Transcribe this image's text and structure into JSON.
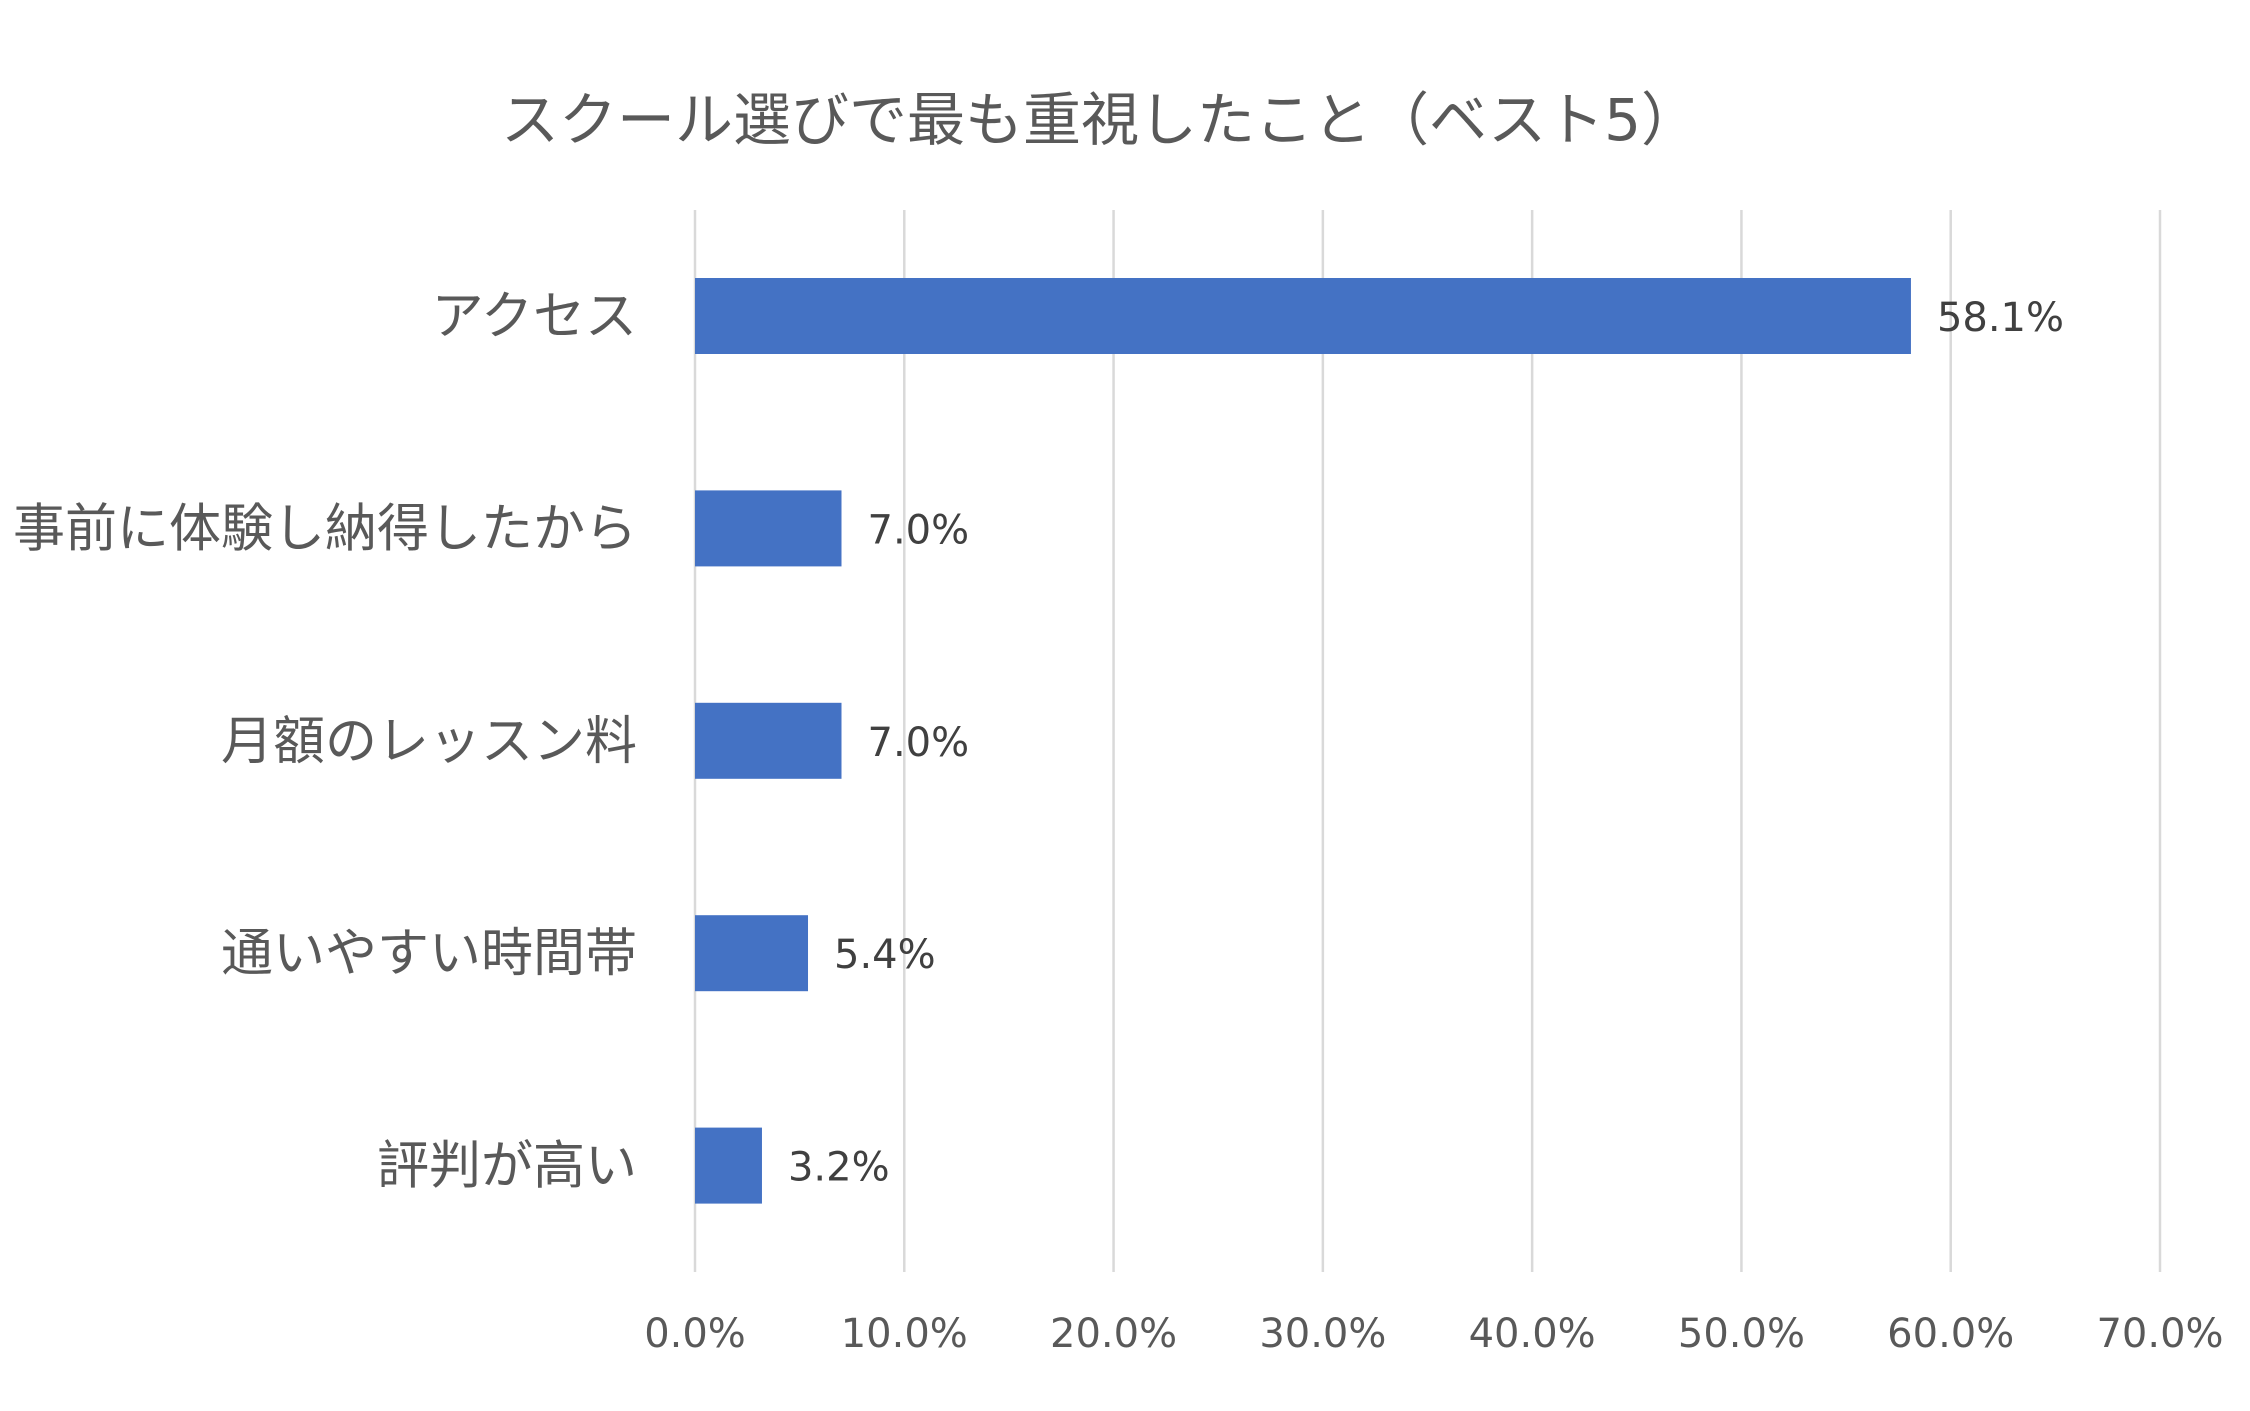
{
  "chart_data": {
    "type": "bar",
    "orientation": "horizontal",
    "title": "スクール選びで最も重視したこと（ベスト5）",
    "xlabel": "",
    "ylabel": "",
    "categories": [
      "アクセス",
      "事前に体験し納得したから",
      "月額のレッスン料",
      "通いやすい時間帯",
      "評判が高い"
    ],
    "values": [
      58.1,
      7.0,
      7.0,
      5.4,
      3.2
    ],
    "data_labels": [
      "58.1%",
      "7.0%",
      "7.0%",
      "5.4%",
      "3.2%"
    ],
    "xlim": [
      0,
      70
    ],
    "ticks": [
      0,
      10,
      20,
      30,
      40,
      50,
      60,
      70
    ],
    "tick_labels": [
      "0.0%",
      "10.0%",
      "20.0%",
      "30.0%",
      "40.0%",
      "50.0%",
      "60.0%",
      "70.0%"
    ],
    "grid": "vertical",
    "legend": "none",
    "bar_color": "#4472C4"
  }
}
